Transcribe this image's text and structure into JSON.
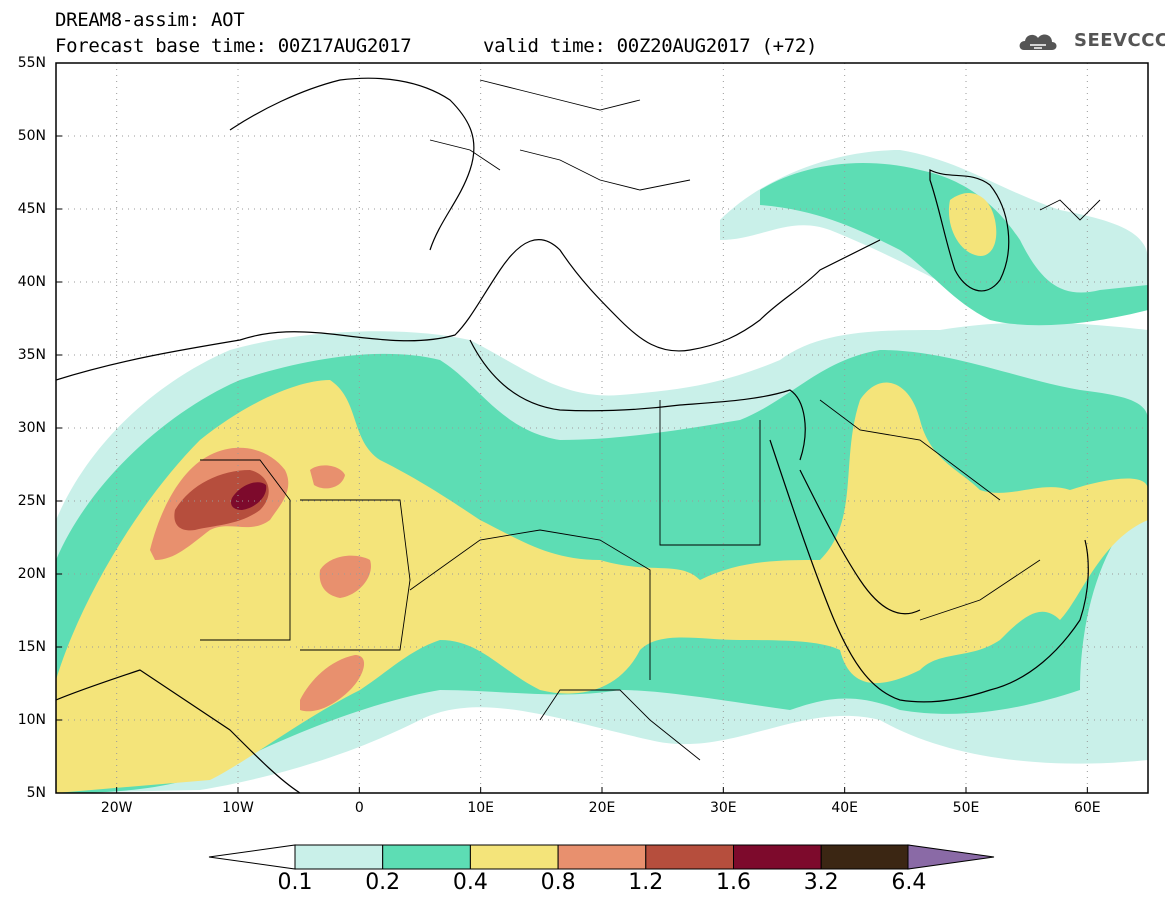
{
  "header": {
    "title": "DREAM8-assim: AOT",
    "base_time": "Forecast base time: 00Z17AUG2017",
    "valid_time": "valid time: 00Z20AUG2017 (+72)",
    "logo_text": "SEEVCCC"
  },
  "axes": {
    "lat_labels": [
      "55N",
      "50N",
      "45N",
      "40N",
      "35N",
      "30N",
      "25N",
      "20N",
      "15N",
      "10N",
      "5N"
    ],
    "lon_labels": [
      "20W",
      "10W",
      "0",
      "10E",
      "20E",
      "30E",
      "40E",
      "50E",
      "60E"
    ],
    "lat_range": [
      5,
      55
    ],
    "lon_range": [
      -25,
      65
    ]
  },
  "colorbar": {
    "labels": [
      "0.1",
      "0.2",
      "0.4",
      "0.8",
      "1.2",
      "1.6",
      "3.2",
      "6.4"
    ],
    "colors": [
      "#c9f0e9",
      "#5dddb4",
      "#f4e47a",
      "#e8906e",
      "#b64e3d",
      "#7d0a2c",
      "#3b2613",
      "#8a6aa6"
    ]
  },
  "map": {
    "variable": "AOT",
    "colors": {
      "land_bg": "#ffffff",
      "border": "#000000",
      "grid": "#9a9a9a"
    }
  }
}
